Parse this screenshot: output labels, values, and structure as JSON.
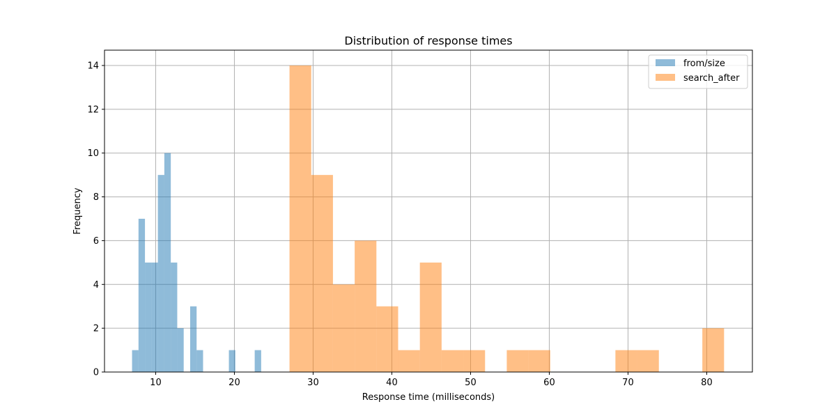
{
  "chart_data": {
    "type": "bar",
    "title": "Distribution of response times",
    "xlabel": "Response time (milliseconds)",
    "ylabel": "Frequency",
    "xlim": [
      3.5,
      85.8
    ],
    "ylim": [
      0,
      14.7
    ],
    "xticks": [
      10,
      20,
      30,
      40,
      50,
      60,
      70,
      80
    ],
    "yticks": [
      0,
      2,
      4,
      6,
      8,
      10,
      12,
      14
    ],
    "grid": true,
    "legend_position": "top-right",
    "series": [
      {
        "name": "from/size",
        "color": "#1f77b4",
        "bar_alpha": 0.5,
        "bin_width": 0.82,
        "bins": [
          {
            "x": 7.0,
            "count": 1
          },
          {
            "x": 7.82,
            "count": 7
          },
          {
            "x": 8.64,
            "count": 5
          },
          {
            "x": 9.46,
            "count": 5
          },
          {
            "x": 10.28,
            "count": 9
          },
          {
            "x": 11.1,
            "count": 10
          },
          {
            "x": 11.92,
            "count": 5
          },
          {
            "x": 12.74,
            "count": 2
          },
          {
            "x": 13.56,
            "count": 0
          },
          {
            "x": 14.38,
            "count": 3
          },
          {
            "x": 15.2,
            "count": 1
          },
          {
            "x": 16.02,
            "count": 0
          },
          {
            "x": 16.84,
            "count": 0
          },
          {
            "x": 17.66,
            "count": 0
          },
          {
            "x": 18.48,
            "count": 0
          },
          {
            "x": 19.3,
            "count": 1
          },
          {
            "x": 20.12,
            "count": 0
          },
          {
            "x": 20.94,
            "count": 0
          },
          {
            "x": 21.76,
            "count": 0
          },
          {
            "x": 22.58,
            "count": 1
          }
        ]
      },
      {
        "name": "search_after",
        "color": "#ff7f0e",
        "bar_alpha": 0.5,
        "bin_width": 2.76,
        "bins": [
          {
            "x": 27.0,
            "count": 14
          },
          {
            "x": 29.76,
            "count": 9
          },
          {
            "x": 32.52,
            "count": 4
          },
          {
            "x": 35.28,
            "count": 6
          },
          {
            "x": 38.04,
            "count": 3
          },
          {
            "x": 40.8,
            "count": 1
          },
          {
            "x": 43.56,
            "count": 5
          },
          {
            "x": 46.32,
            "count": 1
          },
          {
            "x": 49.08,
            "count": 1
          },
          {
            "x": 51.84,
            "count": 0
          },
          {
            "x": 54.6,
            "count": 1
          },
          {
            "x": 57.36,
            "count": 1
          },
          {
            "x": 60.12,
            "count": 0
          },
          {
            "x": 62.88,
            "count": 0
          },
          {
            "x": 65.64,
            "count": 0
          },
          {
            "x": 68.4,
            "count": 1
          },
          {
            "x": 71.16,
            "count": 1
          },
          {
            "x": 73.92,
            "count": 0
          },
          {
            "x": 76.68,
            "count": 0
          },
          {
            "x": 79.44,
            "count": 2
          }
        ]
      }
    ]
  }
}
